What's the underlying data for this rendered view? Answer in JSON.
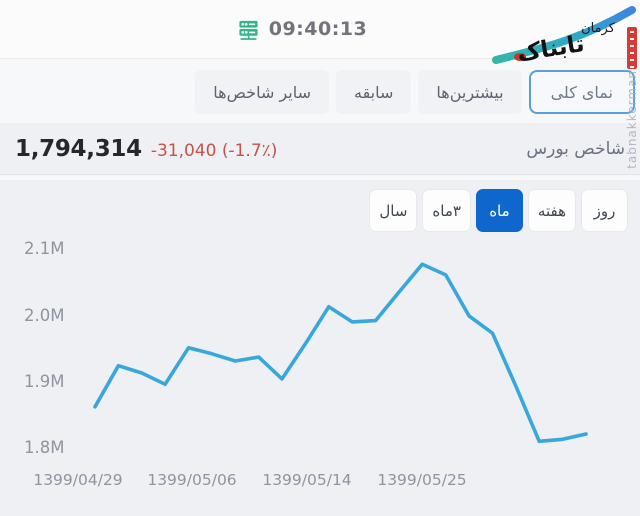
{
  "header": {
    "time": "09:40:13"
  },
  "watermark": {
    "brand_main": "تابناک",
    "brand_sub": "کرمان",
    "vertical_text": "tabnakkerman"
  },
  "tabs": {
    "items": [
      {
        "label": "نمای کلی",
        "selected": true
      },
      {
        "label": "بیشترین‌ها",
        "selected": false
      },
      {
        "label": "سابقه",
        "selected": false
      },
      {
        "label": "سایر شاخص‌ها",
        "selected": false
      }
    ]
  },
  "index_summary": {
    "name": "شاخص بورس",
    "value": "1,794,314",
    "change": "-31,040 (-1.7٪)",
    "change_color": "#c7524a"
  },
  "period_buttons": {
    "items": [
      {
        "label": "روز",
        "selected": false
      },
      {
        "label": "هفته",
        "selected": false
      },
      {
        "label": "ماه",
        "selected": true
      },
      {
        "label": "۳ماه",
        "selected": false
      },
      {
        "label": "سال",
        "selected": false
      }
    ]
  },
  "chart_data": {
    "type": "line",
    "title": "شاخص بورس",
    "selected_period": "ماه",
    "unit": "M (میلیون واحد)",
    "line_color": "#38a7db",
    "background": "#eff0f4",
    "grid": false,
    "legend": false,
    "ylim": [
      1.78,
      2.13
    ],
    "y_tick_labels": [
      "2.1M",
      "2.0M",
      "1.9M",
      "1.8M"
    ],
    "y_tick_values": [
      2.1,
      2.0,
      1.9,
      1.8
    ],
    "x_tick_labels": [
      "1399/04/29",
      "1399/05/06",
      "1399/05/14",
      "1399/05/25"
    ],
    "series": [
      {
        "name": "شاخص بورس",
        "values_millions": [
          1.862,
          1.924,
          1.913,
          1.896,
          1.951,
          1.942,
          1.931,
          1.937,
          1.904,
          1.957,
          2.013,
          1.99,
          1.992,
          2.035,
          2.077,
          2.061,
          1.999,
          1.973,
          1.893,
          1.81,
          1.813,
          1.821
        ]
      }
    ]
  }
}
